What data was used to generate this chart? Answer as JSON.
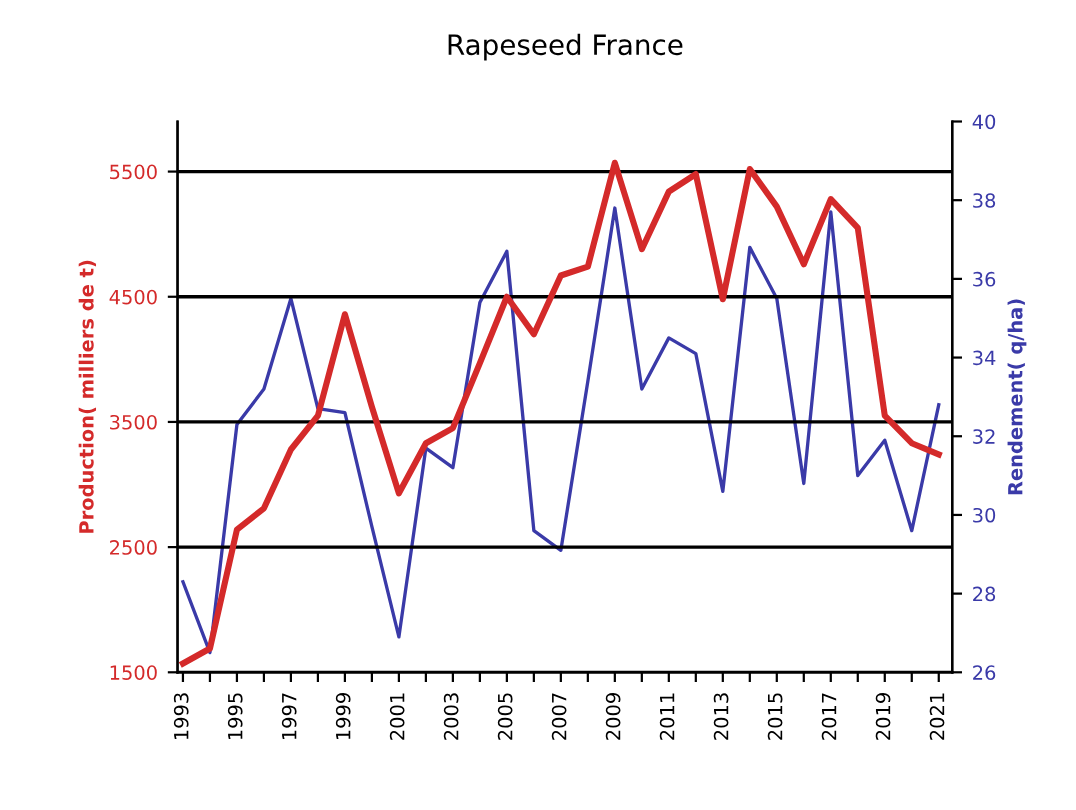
{
  "chart_data": {
    "type": "line",
    "title": "Rapeseed France",
    "ylabel": "Production( milliers de t)",
    "y2label": "Rendement( q/ha)",
    "x": [
      1993,
      1994,
      1995,
      1996,
      1997,
      1998,
      1999,
      2000,
      2001,
      2002,
      2003,
      2004,
      2005,
      2006,
      2007,
      2008,
      2009,
      2010,
      2011,
      2012,
      2013,
      2014,
      2015,
      2016,
      2017,
      2018,
      2019,
      2020,
      2021
    ],
    "series": [
      {
        "color": "#d42a2a",
        "values": [
          1570,
          1690,
          2640,
          2810,
          3280,
          3550,
          4360,
          3620,
          2930,
          3330,
          3450,
          3970,
          4500,
          4200,
          4670,
          4740,
          5570,
          4880,
          5340,
          5480,
          4480,
          5520,
          5220,
          4760,
          5280,
          5050,
          3550,
          3330,
          3240
        ]
      },
      {
        "color": "#3a3aa8",
        "axis": "y2",
        "values": [
          28.3,
          26.5,
          32.3,
          33.2,
          35.5,
          32.7,
          32.6,
          29.7,
          26.9,
          31.7,
          31.2,
          35.4,
          36.7,
          29.6,
          29.1,
          33.4,
          37.8,
          33.2,
          34.5,
          34.1,
          30.6,
          36.8,
          35.5,
          30.8,
          37.7,
          31.0,
          31.9,
          29.6,
          32.8
        ]
      }
    ],
    "xlim": [
      1992.8,
      2021.5
    ],
    "xticks": [
      1993,
      {
        "value": 1994,
        "label": null
      },
      1995,
      {
        "value": 1996,
        "label": null
      },
      1997,
      {
        "value": 1998,
        "label": null
      },
      1999,
      {
        "value": 2000,
        "label": null
      },
      2001,
      {
        "value": 2002,
        "label": null
      },
      2003,
      {
        "value": 2004,
        "label": null
      },
      2005,
      {
        "value": 2006,
        "label": null
      },
      2007,
      {
        "value": 2008,
        "label": null
      },
      2009,
      {
        "value": 2010,
        "label": null
      },
      2011,
      {
        "value": 2012,
        "label": null
      },
      2013,
      {
        "value": 2014,
        "label": null
      },
      2015,
      {
        "value": 2016,
        "label": null
      },
      2017,
      {
        "value": 2018,
        "label": null
      },
      2019,
      {
        "value": 2020,
        "label": null
      },
      2021
    ],
    "ylim": [
      1500,
      5900
    ],
    "yticks": [
      1500,
      2500,
      3500,
      4500,
      5500
    ],
    "y2lim": [
      26,
      40
    ],
    "y2ticks": [
      26,
      28,
      30,
      32,
      34,
      36,
      38,
      40
    ],
    "grid": "y",
    "marker": "none",
    "line_style": "solid"
  }
}
